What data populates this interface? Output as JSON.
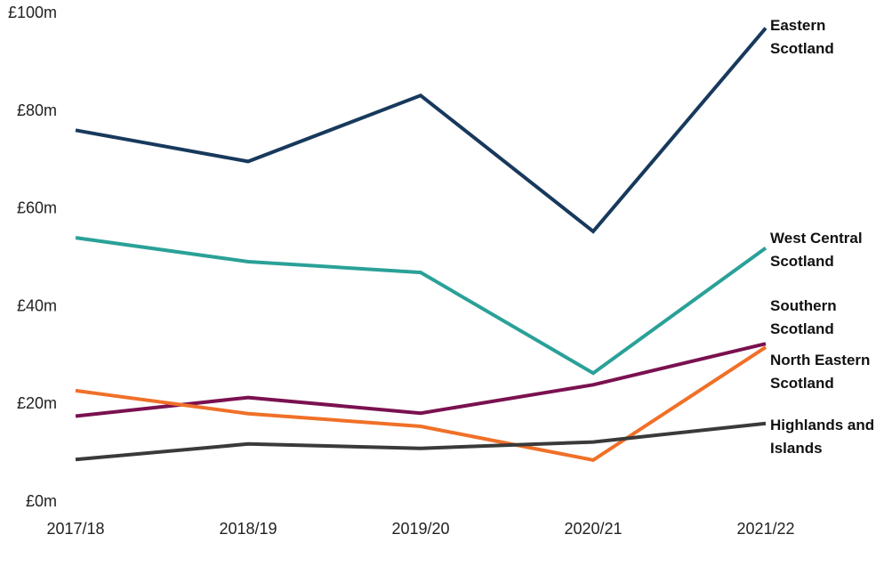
{
  "chart_data": {
    "type": "line",
    "title": "",
    "xlabel": "",
    "ylabel": "",
    "categories": [
      "2017/18",
      "2018/19",
      "2019/20",
      "2020/21",
      "2021/22"
    ],
    "ylim": [
      0,
      100
    ],
    "yticks": [
      {
        "value": 0,
        "label": "£0m"
      },
      {
        "value": 20,
        "label": "£20m"
      },
      {
        "value": 40,
        "label": "£40m"
      },
      {
        "value": 60,
        "label": "£60m"
      },
      {
        "value": 80,
        "label": "£80m"
      },
      {
        "value": 100,
        "label": "£100m"
      }
    ],
    "grid": false,
    "legend": "direct labels at line ends",
    "series": [
      {
        "name": "Eastern Scotland",
        "label_lines": [
          "Eastern",
          "Scotland"
        ],
        "color": "#17395c",
        "values": [
          75.9,
          69.5,
          83.0,
          55.2,
          96.8
        ]
      },
      {
        "name": "West Central Scotland",
        "label_lines": [
          "West Central",
          "Scotland"
        ],
        "color": "#2aa198",
        "values": [
          53.9,
          49.0,
          46.8,
          26.2,
          51.8
        ]
      },
      {
        "name": "Southern Scotland",
        "label_lines": [
          "Southern",
          "Scotland"
        ],
        "color": "#7a1150",
        "values": [
          17.4,
          21.2,
          18.0,
          23.8,
          32.2
        ]
      },
      {
        "name": "North Eastern Scotland",
        "label_lines": [
          "North Eastern",
          "Scotland"
        ],
        "color": "#f07028",
        "values": [
          22.6,
          17.9,
          15.3,
          8.4,
          31.5
        ]
      },
      {
        "name": "Highlands and Islands",
        "label_lines": [
          "Highlands and",
          "Islands"
        ],
        "color": "#3a3a3a",
        "values": [
          8.5,
          11.7,
          10.8,
          12.1,
          15.9
        ]
      }
    ]
  }
}
